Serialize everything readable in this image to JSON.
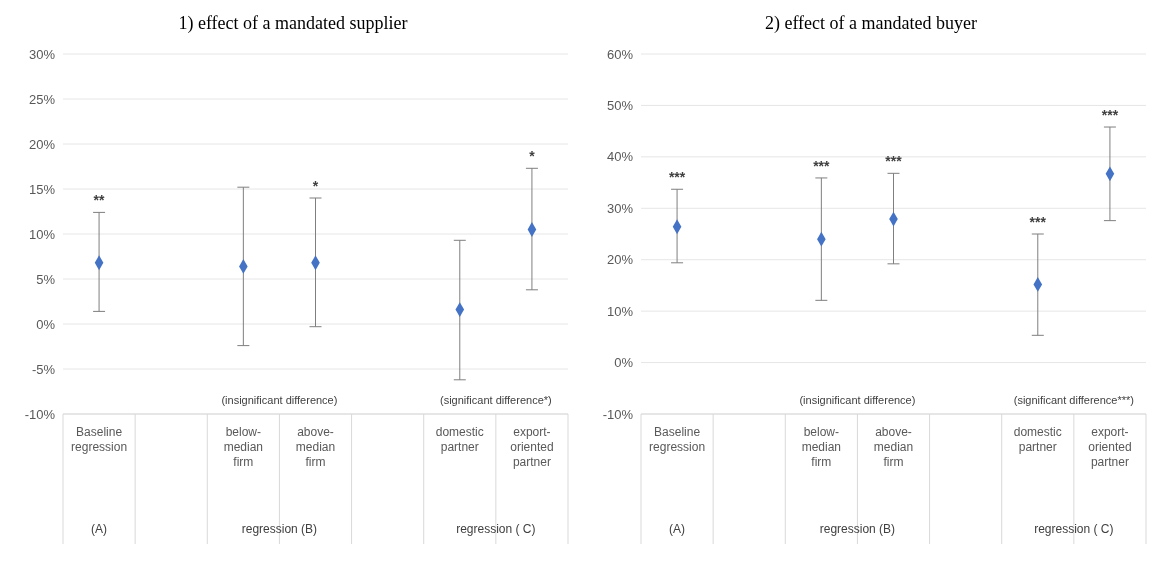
{
  "chart_data": [
    {
      "type": "scatter",
      "title": "1) effect of a mandated supplier",
      "categories": [
        "Baseline regression",
        null,
        "below-median firm",
        "above-median firm",
        null,
        "domestic partner",
        "export-oriented partner"
      ],
      "values": [
        6.8,
        null,
        6.4,
        6.8,
        null,
        1.6,
        10.5
      ],
      "errors": [
        [
          1.4,
          12.4
        ],
        null,
        [
          -2.4,
          15.2
        ],
        [
          -0.3,
          14.0
        ],
        null,
        [
          -6.2,
          9.3
        ],
        [
          3.8,
          17.3
        ]
      ],
      "color": "#4472c4",
      "marker": "diamond",
      "grid": "y",
      "ylim": [
        -10,
        30
      ],
      "yticks": [
        {
          "value": -10,
          "label": "-10%"
        },
        {
          "value": -5,
          "label": "-5%"
        },
        {
          "value": 0,
          "label": "0%"
        },
        {
          "value": 5,
          "label": "5%"
        },
        {
          "value": 10,
          "label": "10%"
        },
        {
          "value": 15,
          "label": "15%"
        },
        {
          "value": 20,
          "label": "20%"
        },
        {
          "value": 25,
          "label": "25%"
        },
        {
          "value": 30,
          "label": "30%"
        }
      ],
      "annotations": [
        "**",
        "*",
        "*",
        "(insignificant difference)",
        "(significant difference*)",
        "(A)",
        "regression (B)",
        "regression ( C)"
      ]
    },
    {
      "type": "scatter",
      "title": "2) effect of a mandated buyer",
      "categories": [
        "Baseline regression",
        null,
        "below-median firm",
        "above-median firm",
        null,
        "domestic partner",
        "export-oriented partner"
      ],
      "values": [
        26.4,
        null,
        24.0,
        27.9,
        null,
        15.2,
        36.7
      ],
      "errors": [
        [
          19.4,
          33.7
        ],
        null,
        [
          12.1,
          35.9
        ],
        [
          19.2,
          36.8
        ],
        null,
        [
          5.3,
          25.0
        ],
        [
          27.6,
          45.8
        ]
      ],
      "color": "#4472c4",
      "marker": "diamond",
      "grid": "y",
      "ylim": [
        -10,
        60
      ],
      "yticks": [
        {
          "value": -10,
          "label": "-10%"
        },
        {
          "value": 0,
          "label": "0%"
        },
        {
          "value": 10,
          "label": "10%"
        },
        {
          "value": 20,
          "label": "20%"
        },
        {
          "value": 30,
          "label": "30%"
        },
        {
          "value": 40,
          "label": "40%"
        },
        {
          "value": 50,
          "label": "50%"
        },
        {
          "value": 60,
          "label": "60%"
        }
      ],
      "annotations": [
        "***",
        "***",
        "***",
        "***",
        "***",
        "(insignificant difference)",
        "(significant difference***)",
        "(A)",
        "regression (B)",
        "regression ( C)"
      ]
    }
  ]
}
